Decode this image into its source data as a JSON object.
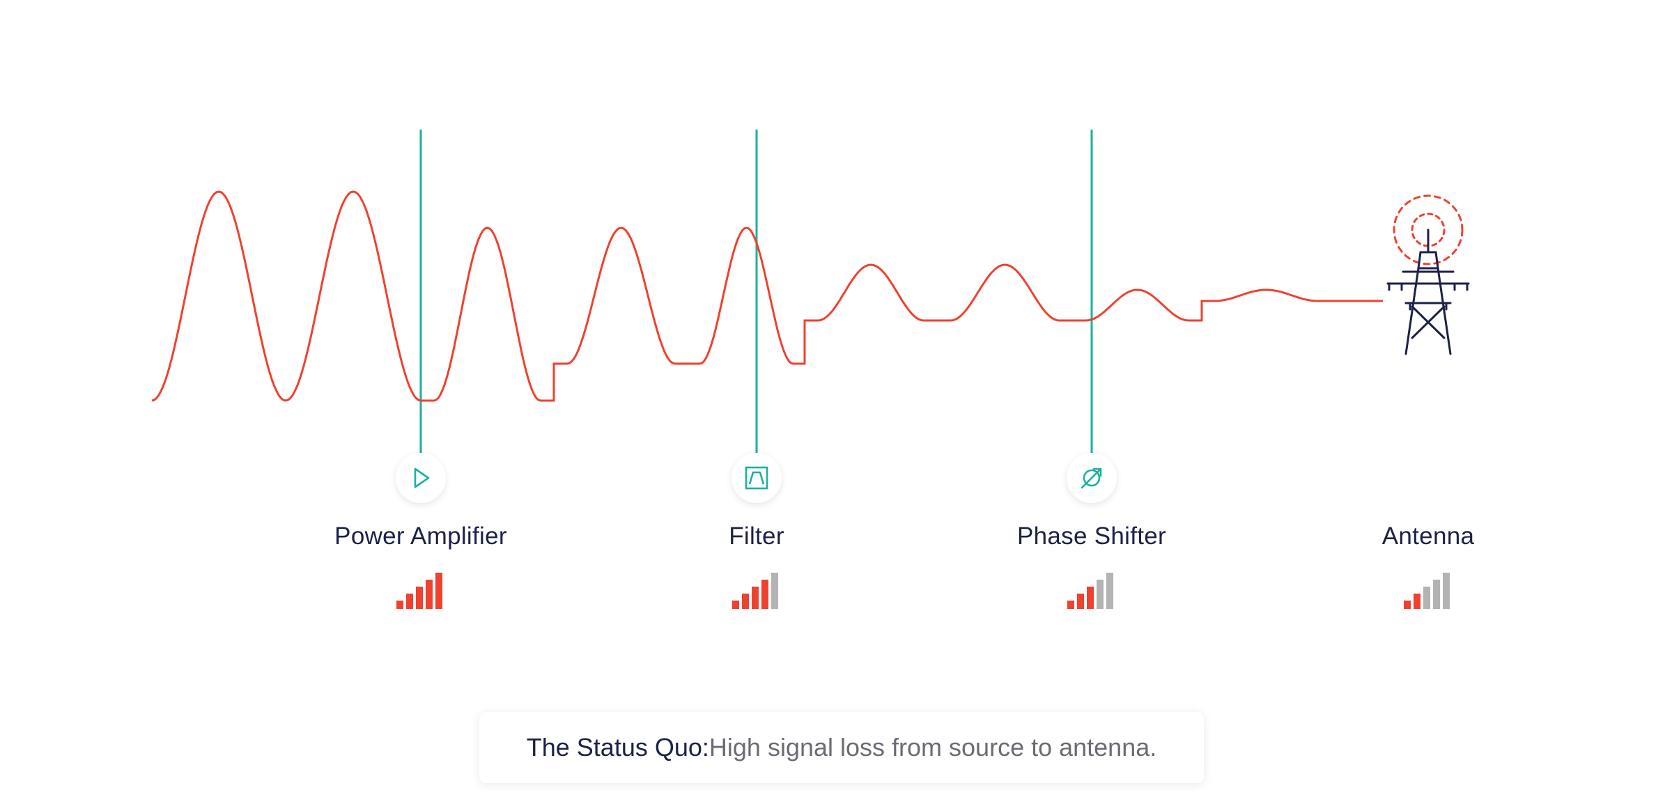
{
  "colors": {
    "signal": "#f0412e",
    "marker": "#1ab0a0",
    "text_dark": "#1b2148",
    "text_gray": "#6b6b73",
    "bar_active": "#f0412e",
    "bar_inactive": "#b3b3b3",
    "tower": "#1b2148"
  },
  "stages": [
    {
      "id": "power-amplifier",
      "label": "Power Amplifier",
      "icon": "play-triangle-icon",
      "bars_active": 5,
      "bars_total": 5
    },
    {
      "id": "filter",
      "label": "Filter",
      "icon": "bandpass-filter-icon",
      "bars_active": 4,
      "bars_total": 5
    },
    {
      "id": "phase-shifter",
      "label": "Phase Shifter",
      "icon": "phase-shift-icon",
      "bars_active": 3,
      "bars_total": 5
    },
    {
      "id": "antenna",
      "label": "Antenna",
      "icon": "antenna-tower-icon",
      "bars_active": 2,
      "bars_total": 5
    }
  ],
  "caption": {
    "strong": "The Status Quo:",
    "rest": " High signal loss from source to antenna."
  }
}
